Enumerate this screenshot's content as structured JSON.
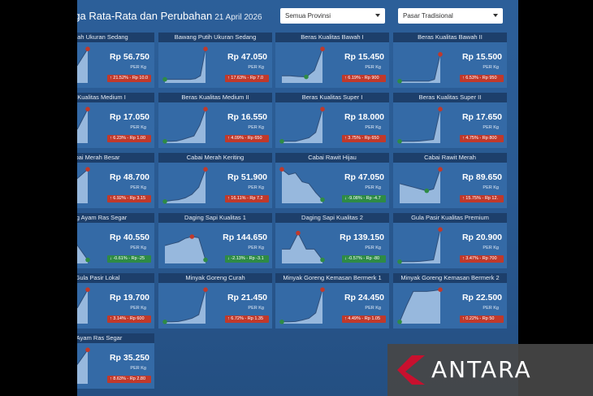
{
  "header": {
    "title": "rga Rata-Rata dan Perubahan",
    "date": "21 April 2026",
    "province_select": "Semua Provinsi",
    "market_select": "Pasar Tradisional"
  },
  "unit": "PER Kg",
  "watermark": "ANTARA",
  "colors": {
    "up": "#c0392b",
    "down": "#2e8b45",
    "line": "#2f4f7a",
    "fill": "#a9c6e6"
  },
  "cards": [
    {
      "name": "Merah Ukuran Sedang",
      "price": "Rp 56.750",
      "change": "21.52% - Rp 10.0",
      "dir": "up",
      "trend": [
        0.1,
        0.15,
        0.2,
        0.5,
        0.95
      ]
    },
    {
      "name": "Bawang Putih Ukuran Sedang",
      "price": "Rp 47.050",
      "change": "17.63% - Rp 7.0",
      "dir": "up",
      "trend": [
        0.1,
        0.1,
        0.1,
        0.1,
        0.1,
        0.1,
        0.12,
        0.2,
        0.95
      ]
    },
    {
      "name": "Beras Kualitas Bawah I",
      "price": "Rp 15.450",
      "change": "6.19% - Rp 900",
      "dir": "up",
      "trend": [
        0.2,
        0.2,
        0.18,
        0.17,
        0.35,
        0.95
      ]
    },
    {
      "name": "Beras Kualitas Bawah II",
      "price": "Rp 15.500",
      "change": "6.53% - Rp 950",
      "dir": "up",
      "trend": [
        0.05,
        0.05,
        0.05,
        0.05,
        0.05,
        0.05,
        0.1,
        0.8
      ]
    },
    {
      "name": "as Kualitas Medium I",
      "price": "Rp 17.050",
      "change": "6.23% - Rp 1.00",
      "dir": "up",
      "trend": [
        0.1,
        0.15,
        0.2,
        0.4,
        0.95
      ]
    },
    {
      "name": "Beras Kualitas Medium II",
      "price": "Rp 16.550",
      "change": "4.09% - Rp 650",
      "dir": "up",
      "trend": [
        0.05,
        0.05,
        0.06,
        0.1,
        0.15,
        0.2,
        0.5,
        0.95
      ]
    },
    {
      "name": "Beras Kualitas Super I",
      "price": "Rp 18.000",
      "change": "3.75% - Rp 650",
      "dir": "up",
      "trend": [
        0.05,
        0.05,
        0.05,
        0.1,
        0.15,
        0.3,
        0.95
      ]
    },
    {
      "name": "Beras Kualitas Super II",
      "price": "Rp 17.650",
      "change": "4.75% - Rp 800",
      "dir": "up",
      "trend": [
        0.05,
        0.05,
        0.05,
        0.06,
        0.08,
        0.1,
        0.95
      ]
    },
    {
      "name": "bai Merah Besar",
      "price": "Rp 48.700",
      "change": "6.92% - Rp 3.15",
      "dir": "up",
      "trend": [
        0.2,
        0.3,
        0.5,
        0.7,
        0.95
      ]
    },
    {
      "name": "Cabai Merah Keriting",
      "price": "Rp 51.900",
      "change": "16.11% - Rp 7.2",
      "dir": "up",
      "trend": [
        0.05,
        0.08,
        0.1,
        0.15,
        0.25,
        0.45,
        0.95
      ]
    },
    {
      "name": "Cabai Rawit Hijau",
      "price": "Rp 47.050",
      "change": "-9.08% - Rp -4.7",
      "dir": "down",
      "trend": [
        0.95,
        0.8,
        0.85,
        0.6,
        0.55,
        0.3,
        0.1
      ]
    },
    {
      "name": "Cabai Rawit Merah",
      "price": "Rp 89.650",
      "change": "15.75% - Rp 12.",
      "dir": "up",
      "trend": [
        0.55,
        0.5,
        0.45,
        0.4,
        0.35,
        0.4,
        0.95
      ]
    },
    {
      "name": "ging Ayam Ras Segar",
      "price": "Rp 40.550",
      "change": "-0.61% - Rp -25",
      "dir": "down",
      "trend": [
        0.3,
        0.5,
        0.95,
        0.5,
        0.1
      ]
    },
    {
      "name": "Daging Sapi Kualitas 1",
      "price": "Rp 144.650",
      "change": "-2.13% - Rp -3.1",
      "dir": "down",
      "trend": [
        0.5,
        0.55,
        0.6,
        0.7,
        0.75,
        0.72,
        0.1
      ]
    },
    {
      "name": "Daging Sapi Kualitas 2",
      "price": "Rp 139.150",
      "change": "-0.57% - Rp -80",
      "dir": "down",
      "trend": [
        0.4,
        0.4,
        0.85,
        0.4,
        0.4,
        0.1
      ]
    },
    {
      "name": "Gula Pasir Kualitas Premium",
      "price": "Rp 20.900",
      "change": "3.47% - Rp 700",
      "dir": "up",
      "trend": [
        0.05,
        0.05,
        0.05,
        0.06,
        0.08,
        0.1,
        0.95
      ]
    },
    {
      "name": "Gula Pasir Lokal",
      "price": "Rp 19.700",
      "change": "3.14% - Rp 600",
      "dir": "up",
      "trend": [
        0.1,
        0.15,
        0.25,
        0.45,
        0.95
      ]
    },
    {
      "name": "Minyak Goreng Curah",
      "price": "Rp 21.450",
      "change": "6.72% - Rp 1.35",
      "dir": "up",
      "trend": [
        0.05,
        0.05,
        0.06,
        0.1,
        0.15,
        0.25,
        0.95
      ]
    },
    {
      "name": "Minyak Goreng Kemasan Bermerk 1",
      "price": "Rp 24.450",
      "change": "4.49% - Rp 1.05",
      "dir": "up",
      "trend": [
        0.05,
        0.05,
        0.06,
        0.1,
        0.15,
        0.3,
        0.95
      ]
    },
    {
      "name": "Minyak Goreng Kemasan Bermerk 2",
      "price": "Rp 22.500",
      "change": "0.22% - Rp 50",
      "dir": "up",
      "trend": [
        0.05,
        0.5,
        0.9,
        0.9,
        0.9,
        0.92,
        0.95
      ]
    },
    {
      "name": "r Ayam Ras Segar",
      "price": "Rp 35.250",
      "change": "8.63% - Rp 2.80",
      "dir": "up",
      "trend": [
        0.1,
        0.2,
        0.35,
        0.55,
        0.95
      ]
    }
  ]
}
